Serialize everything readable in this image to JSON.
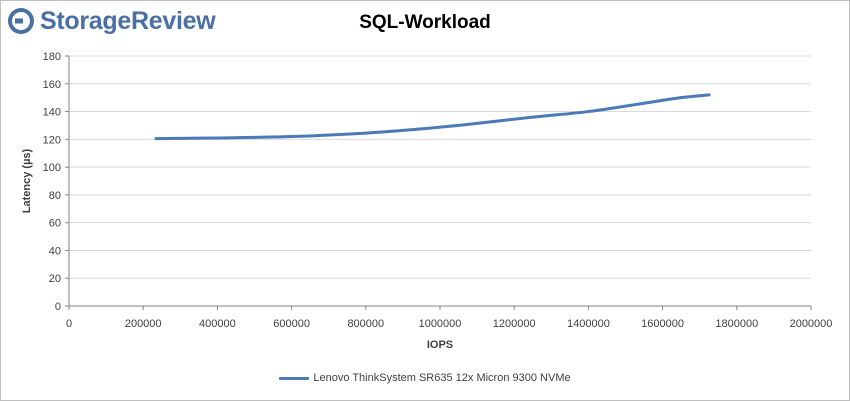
{
  "logo": {
    "text": "StorageReview",
    "color": "#4a6fa5"
  },
  "chart_data": {
    "type": "line",
    "title": "SQL-Workload",
    "xlabel": "IOPS",
    "ylabel": "Latency (µs)",
    "xlim": [
      0,
      2000000
    ],
    "ylim": [
      0,
      180
    ],
    "x_ticks": [
      0,
      200000,
      400000,
      600000,
      800000,
      1000000,
      1200000,
      1400000,
      1600000,
      1800000,
      2000000
    ],
    "x_tick_labels": [
      "0",
      "200000",
      "400000",
      "600000",
      "800000",
      "1000000",
      "1200000",
      "1400000",
      "1600000",
      "1800000",
      "2000000"
    ],
    "y_ticks": [
      0,
      20,
      40,
      60,
      80,
      100,
      120,
      140,
      160,
      180
    ],
    "y_tick_labels": [
      "0",
      "20",
      "40",
      "60",
      "80",
      "100",
      "120",
      "140",
      "160",
      "180"
    ],
    "grid": true,
    "legend_position": "bottom",
    "series": [
      {
        "name": "Lenovo ThinkSystem SR635 12x Micron 9300 NVMe",
        "color": "#4a7ab8",
        "x": [
          235000,
          400000,
          600000,
          800000,
          950000,
          1100000,
          1250000,
          1400000,
          1550000,
          1650000,
          1725000
        ],
        "y": [
          120.5,
          121,
          122,
          124.5,
          127.5,
          131.5,
          136,
          140,
          146,
          150,
          152
        ]
      }
    ]
  }
}
